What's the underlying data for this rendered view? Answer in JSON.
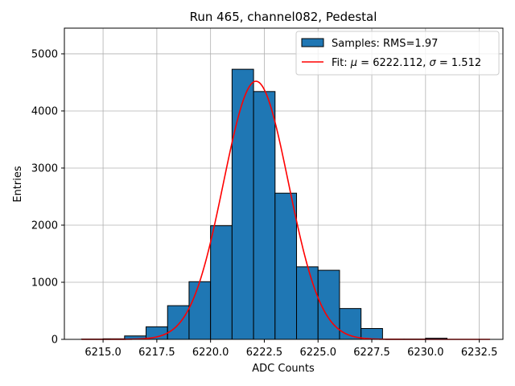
{
  "chart_data": {
    "type": "bar",
    "title": "Run 465, channel082, Pedestal",
    "xlabel": "ADC Counts",
    "ylabel": "Entries",
    "xlim": [
      6213.2,
      6233.6
    ],
    "ylim": [
      0,
      5450
    ],
    "grid": true,
    "x_ticks": [
      6215.0,
      6217.5,
      6220.0,
      6222.5,
      6225.0,
      6227.5,
      6230.0,
      6232.5
    ],
    "x_tick_labels": [
      "6215.0",
      "6217.5",
      "6220.0",
      "6222.5",
      "6225.0",
      "6227.5",
      "6230.0",
      "6232.5"
    ],
    "y_ticks": [
      0,
      1000,
      2000,
      3000,
      4000,
      5000
    ],
    "y_tick_labels": [
      "0",
      "1000",
      "2000",
      "3000",
      "4000",
      "5000"
    ],
    "bar_color": "#1f77b4",
    "fit_color": "#ff0000",
    "legend_position": "upper-right",
    "series": [
      {
        "name": "Samples: RMS=1.97",
        "kind": "histogram",
        "bins": [
          {
            "left": 6214.0,
            "right": 6215.0,
            "count": 5
          },
          {
            "left": 6215.0,
            "right": 6216.0,
            "count": 10
          },
          {
            "left": 6216.0,
            "right": 6217.0,
            "count": 60
          },
          {
            "left": 6217.0,
            "right": 6218.0,
            "count": 220
          },
          {
            "left": 6218.0,
            "right": 6219.0,
            "count": 590
          },
          {
            "left": 6219.0,
            "right": 6220.0,
            "count": 1010
          },
          {
            "left": 6220.0,
            "right": 6221.0,
            "count": 1990
          },
          {
            "left": 6221.0,
            "right": 6222.0,
            "count": 4730
          },
          {
            "left": 6222.0,
            "right": 6223.0,
            "count": 4340
          },
          {
            "left": 6223.0,
            "right": 6224.0,
            "count": 2560
          },
          {
            "left": 6224.0,
            "right": 6225.0,
            "count": 1270
          },
          {
            "left": 6225.0,
            "right": 6226.0,
            "count": 1210
          },
          {
            "left": 6226.0,
            "right": 6227.0,
            "count": 540
          },
          {
            "left": 6227.0,
            "right": 6228.0,
            "count": 190
          },
          {
            "left": 6228.0,
            "right": 6229.0,
            "count": 5
          },
          {
            "left": 6229.0,
            "right": 6230.0,
            "count": 5
          },
          {
            "left": 6230.0,
            "right": 6231.0,
            "count": 20
          },
          {
            "left": 6231.0,
            "right": 6232.0,
            "count": 0
          },
          {
            "left": 6232.0,
            "right": 6233.0,
            "count": 0
          }
        ]
      },
      {
        "name": "Fit: μ = 6222.112, σ = 1.512",
        "name_prefix": "Fit: ",
        "name_mu": "μ",
        "name_mid": " = 6222.112, ",
        "name_sigma": "σ",
        "name_suffix": " = 1.512",
        "kind": "gaussian",
        "mu": 6222.112,
        "sigma": 1.512,
        "amplitude": 4520,
        "x_range": [
          6214.0,
          6233.0
        ]
      }
    ]
  }
}
